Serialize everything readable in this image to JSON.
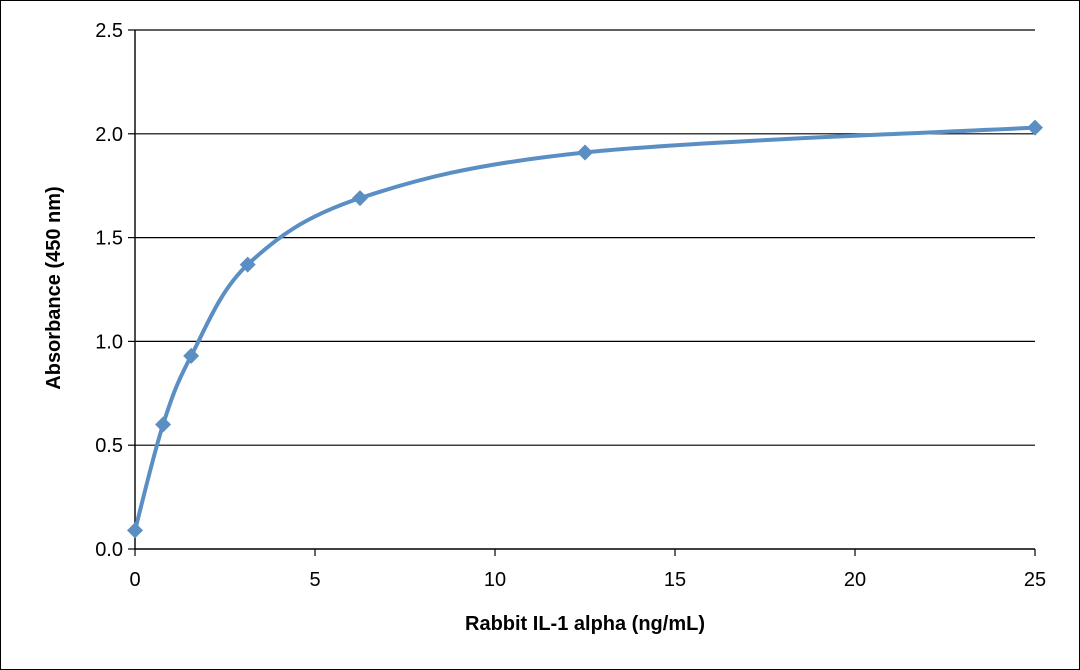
{
  "chart_data": {
    "type": "line",
    "title": "",
    "xlabel": "Rabbit IL-1 alpha (ng/mL)",
    "ylabel": "Absorbance (450 nm)",
    "xlim": [
      0,
      25
    ],
    "ylim": [
      0,
      2.5
    ],
    "x_ticks": [
      "0",
      "5",
      "10",
      "15",
      "20",
      "25"
    ],
    "y_ticks": [
      "0.0",
      "0.5",
      "1.0",
      "1.5",
      "2.0",
      "2.5"
    ],
    "grid": "horizontal",
    "legend": "none",
    "smooth": true,
    "marker": "diamond",
    "series": [
      {
        "color": "#5B8FC4",
        "points": [
          {
            "x": 0,
            "y": 0.09
          },
          {
            "x": 0.78,
            "y": 0.6
          },
          {
            "x": 1.56,
            "y": 0.93
          },
          {
            "x": 3.13,
            "y": 1.37
          },
          {
            "x": 6.25,
            "y": 1.69
          },
          {
            "x": 12.5,
            "y": 1.91
          },
          {
            "x": 25,
            "y": 2.03
          }
        ]
      }
    ]
  }
}
